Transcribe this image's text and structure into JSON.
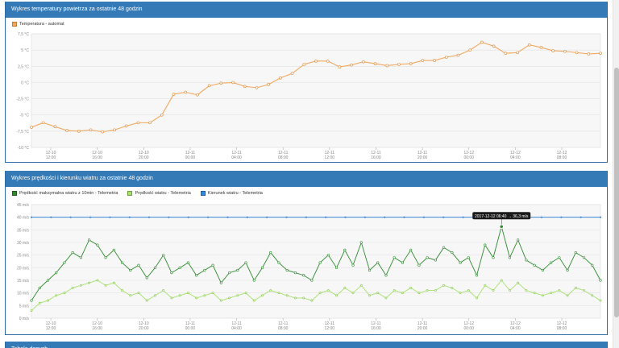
{
  "panels": [
    {
      "title": "Wykres temperatury powietrza za ostatnie 48 godzin"
    },
    {
      "title": "Wykres prędkości i kierunku wiatru za ostatnie 48 godzin"
    },
    {
      "title": "Tabela danych"
    }
  ],
  "colors": {
    "header": "#337ab7",
    "temp": "#f0a860",
    "wind_max": "#2d8a2d",
    "wind_speed": "#a8e070",
    "wind_dir": "#3a86d4"
  },
  "tooltip": "2017-12-12 06:40 → 36,3 m/s",
  "chart_data": [
    {
      "type": "line",
      "title": "",
      "legend": [
        "Temperatura - automat"
      ],
      "ylim": [
        -10,
        7.5
      ],
      "y_ticks": [
        "-10 °C",
        "-7,5 °C",
        "-5 °C",
        "-2,5 °C",
        "0 °C",
        "2,5 °C",
        "5 °C",
        "7,5 °C"
      ],
      "x_ticks": [
        [
          "12-10",
          "12:00"
        ],
        [
          "12-10",
          "16:00"
        ],
        [
          "12-10",
          "20:00"
        ],
        [
          "12-11",
          "00:00"
        ],
        [
          "12-11",
          "04:00"
        ],
        [
          "12-11",
          "08:00"
        ],
        [
          "12-11",
          "12:00"
        ],
        [
          "12-11",
          "16:00"
        ],
        [
          "12-11",
          "20:00"
        ],
        [
          "12-12",
          "00:00"
        ],
        [
          "12-12",
          "04:00"
        ],
        [
          "12-12",
          "08:00"
        ]
      ],
      "series": [
        {
          "name": "Temperatura - automat",
          "values": [
            -6.9,
            -6.2,
            -6.8,
            -7.4,
            -7.5,
            -7.3,
            -7.6,
            -7.3,
            -6.7,
            -6.2,
            -6.2,
            -5,
            -1.8,
            -1.5,
            -1.9,
            -0.5,
            -0.1,
            0,
            -0.6,
            -0.8,
            -0.3,
            0.7,
            1.4,
            2.8,
            3.3,
            3.3,
            2.4,
            2.7,
            3.2,
            2.9,
            2.6,
            2.8,
            2.9,
            3.4,
            3.4,
            3.9,
            4.2,
            5,
            6.2,
            5.6,
            4.5,
            4.6,
            5.8,
            5.4,
            4.9,
            4.8,
            4.6,
            4.4,
            4.5
          ]
        }
      ]
    },
    {
      "type": "line",
      "title": "",
      "legend": [
        "Prędkość maksymalna wiatru z 10min - Telemetria",
        "Prędkość wiatru - Telemetria",
        "Kierunek wiatru - Telemetria"
      ],
      "ylim": [
        0,
        45
      ],
      "y_ticks": [
        "0 m/s",
        "5 m/s",
        "10 m/s",
        "15 m/s",
        "20 m/s",
        "25 m/s",
        "30 m/s",
        "35 m/s",
        "40 m/s",
        "45 m/s"
      ],
      "x_ticks": [
        [
          "12-10",
          "12:00"
        ],
        [
          "12-10",
          "16:00"
        ],
        [
          "12-10",
          "20:00"
        ],
        [
          "12-11",
          "00:00"
        ],
        [
          "12-11",
          "04:00"
        ],
        [
          "12-11",
          "08:00"
        ],
        [
          "12-11",
          "12:00"
        ],
        [
          "12-11",
          "16:00"
        ],
        [
          "12-11",
          "20:00"
        ],
        [
          "12-12",
          "00:00"
        ],
        [
          "12-12",
          "04:00"
        ],
        [
          "12-12",
          "08:00"
        ]
      ],
      "series": [
        {
          "name": "Prędkość maksymalna wiatru z 10min - Telemetria",
          "values": [
            7,
            12,
            15,
            18,
            22,
            26,
            24,
            31,
            29,
            24,
            27,
            22,
            19,
            21,
            16,
            20,
            25,
            18,
            20,
            22,
            17,
            19,
            21,
            14,
            18,
            19,
            22,
            15,
            20,
            26,
            22,
            19,
            18,
            17,
            15,
            22,
            25,
            20,
            27,
            21,
            30,
            19,
            22,
            17,
            24,
            22,
            27,
            21,
            24,
            23,
            28,
            26,
            22,
            24,
            17,
            29,
            24,
            36.3,
            24,
            31,
            23,
            21,
            19,
            22,
            24,
            19,
            26,
            24,
            21,
            15
          ]
        },
        {
          "name": "Prędkość wiatru - Telemetria",
          "values": [
            3,
            6,
            7,
            9,
            10,
            12,
            13,
            14,
            15,
            13,
            14,
            11,
            9,
            10,
            7,
            9,
            11,
            8,
            9,
            10,
            8,
            9,
            10,
            7,
            8,
            9,
            10,
            7,
            9,
            11,
            10,
            9,
            8,
            8,
            7,
            10,
            11,
            9,
            12,
            10,
            13,
            9,
            10,
            8,
            11,
            10,
            12,
            10,
            11,
            11,
            13,
            12,
            10,
            11,
            8,
            13,
            11,
            15,
            11,
            14,
            11,
            10,
            9,
            10,
            11,
            9,
            12,
            11,
            9,
            7
          ]
        },
        {
          "name": "Kierunek wiatru - Telemetria",
          "values": [
            40,
            40,
            40,
            40,
            40,
            40,
            40,
            40,
            40,
            40,
            40,
            40,
            40,
            40,
            40,
            40,
            40,
            40,
            40,
            40,
            40,
            40,
            40,
            40,
            40,
            40,
            40,
            40,
            40,
            40
          ]
        }
      ]
    }
  ]
}
